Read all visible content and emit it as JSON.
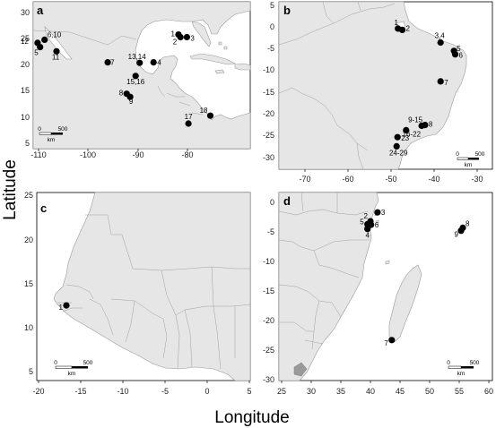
{
  "axis_titles": {
    "y": "Latitude",
    "x": "Longitude"
  },
  "panels": [
    {
      "id": "a",
      "x_ticks": [
        "-110",
        "-100",
        "-90",
        "-80"
      ],
      "y_ticks": [
        "30",
        "25",
        "20",
        "15",
        "10",
        "5"
      ],
      "scale_bar": {
        "zero": "0",
        "value": "500",
        "unit": "km"
      },
      "sites": [
        {
          "label": "6,10",
          "lon": -108.8,
          "lat": 25.4
        },
        {
          "label": "12",
          "lon": -110.2,
          "lat": 24.8
        },
        {
          "label": "5",
          "lon": -109.7,
          "lat": 24.0
        },
        {
          "label": "11",
          "lon": -106.4,
          "lat": 23.2
        },
        {
          "label": "7",
          "lon": -96.1,
          "lat": 21.1
        },
        {
          "label": "13,14",
          "lon": -89.7,
          "lat": 21.0
        },
        {
          "label": "4",
          "lon": -86.9,
          "lat": 21.1
        },
        {
          "label": "15,16",
          "lon": -90.5,
          "lat": 18.5
        },
        {
          "label": "1",
          "lon": -81.9,
          "lat": 26.4
        },
        {
          "label": "2",
          "lon": -81.5,
          "lat": 25.9
        },
        {
          "label": "3",
          "lon": -80.2,
          "lat": 25.9
        },
        {
          "label": "8",
          "lon": -92.3,
          "lat": 15.1
        },
        {
          "label": "9",
          "lon": -91.6,
          "lat": 14.5
        },
        {
          "label": "17",
          "lon": -79.9,
          "lat": 9.4
        },
        {
          "label": "18",
          "lon": -75.5,
          "lat": 10.9
        }
      ]
    },
    {
      "id": "b",
      "x_ticks": [
        "-70",
        "-60",
        "-50",
        "-40",
        "-30"
      ],
      "y_ticks": [
        "5",
        "0",
        "-5",
        "-10",
        "-15",
        "-20",
        "-25",
        "-30"
      ],
      "scale_bar": {
        "zero": "0",
        "value": "500",
        "unit": "km"
      },
      "sites": [
        {
          "label": "1",
          "lon": -48.4,
          "lat": -0.5
        },
        {
          "label": "2",
          "lon": -47.4,
          "lat": -0.8
        },
        {
          "label": "3,4",
          "lon": -38.5,
          "lat": -3.7
        },
        {
          "label": "5",
          "lon": -35.4,
          "lat": -5.6
        },
        {
          "label": "6",
          "lon": -35.1,
          "lat": -6.4
        },
        {
          "label": "7",
          "lon": -38.5,
          "lat": -12.6
        },
        {
          "label": "9-15",
          "lon": -42.9,
          "lat": -22.8
        },
        {
          "label": "8",
          "lon": -42.1,
          "lat": -22.6
        },
        {
          "label": "16-22",
          "lon": -46.5,
          "lat": -23.8
        },
        {
          "label": "23",
          "lon": -48.5,
          "lat": -25.4
        },
        {
          "label": "24-29",
          "lon": -48.7,
          "lat": -27.5
        }
      ]
    },
    {
      "id": "c",
      "x_ticks": [
        "-20",
        "-15",
        "-10",
        "-5",
        "0",
        "5"
      ],
      "y_ticks": [
        "25",
        "20",
        "15",
        "10",
        "5"
      ],
      "scale_bar": {
        "zero": "0",
        "value": "500",
        "unit": "km"
      },
      "sites": [
        {
          "label": "1",
          "lon": -16.7,
          "lat": 12.5
        }
      ]
    },
    {
      "id": "d",
      "x_ticks": [
        "25",
        "30",
        "35",
        "40",
        "45",
        "50",
        "55",
        "60"
      ],
      "y_ticks": [
        "0",
        "-5",
        "-10",
        "-15",
        "-20",
        "-25",
        "-30"
      ],
      "scale_bar": {
        "zero": "0",
        "value": "500",
        "unit": "km"
      },
      "sites": [
        {
          "label": "3",
          "lon": 41.2,
          "lat": -1.7
        },
        {
          "label": "2",
          "lon": 40.0,
          "lat": -3.2
        },
        {
          "label": "5",
          "lon": 39.5,
          "lat": -3.7
        },
        {
          "label": "6",
          "lon": 40.1,
          "lat": -3.8
        },
        {
          "label": "4",
          "lon": 39.5,
          "lat": -4.5
        },
        {
          "label": "8",
          "lon": 55.6,
          "lat": -4.3
        },
        {
          "label": "9",
          "lon": 55.3,
          "lat": -4.8
        },
        {
          "label": "7",
          "lon": 43.6,
          "lat": -23.3
        }
      ]
    }
  ]
}
